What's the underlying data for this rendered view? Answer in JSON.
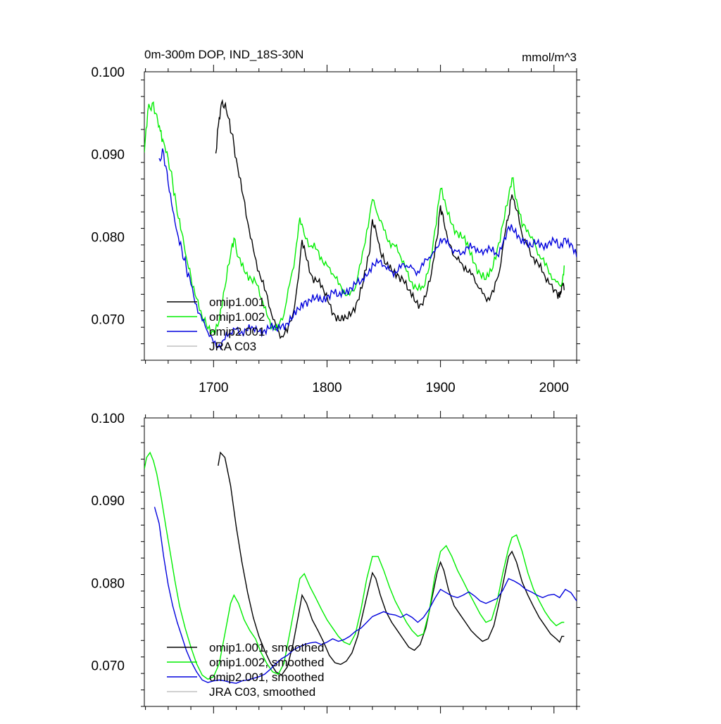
{
  "title": "0m-300m DOP, IND_18S-30N",
  "units": "mmol/m^3",
  "colors": {
    "omip1_001": "#000000",
    "omip1_002": "#00ee00",
    "omip2_001": "#0000dd",
    "jra_c03": "#c0c0c0"
  },
  "chart_data": [
    {
      "type": "line",
      "panel": "raw",
      "xlim": [
        1639,
        2020
      ],
      "ylim": [
        0.065,
        0.1
      ],
      "xticks": [
        1700,
        1800,
        1900,
        2000
      ],
      "xtick_labels": [
        "1700",
        "1800",
        "1900",
        "2000"
      ],
      "yticks": [
        0.07,
        0.08,
        0.09,
        0.1
      ],
      "ytick_labels": [
        "0.070",
        "0.080",
        "0.090",
        "0.100"
      ],
      "legend_position": "bottom-left",
      "series": [
        {
          "name": "omip1.001",
          "key": "omip1_001",
          "x": [
            1702,
            1705,
            1707,
            1710,
            1712,
            1716,
            1720,
            1725,
            1730,
            1735,
            1740,
            1745,
            1750,
            1755,
            1760,
            1765,
            1770,
            1775,
            1778,
            1782,
            1787,
            1792,
            1797,
            1802,
            1807,
            1812,
            1817,
            1822,
            1827,
            1832,
            1837,
            1840,
            1843,
            1847,
            1852,
            1857,
            1862,
            1867,
            1872,
            1877,
            1882,
            1887,
            1892,
            1897,
            1900,
            1903,
            1907,
            1912,
            1917,
            1922,
            1927,
            1932,
            1937,
            1942,
            1947,
            1952,
            1957,
            1960,
            1963,
            1967,
            1972,
            1977,
            1982,
            1987,
            1992,
            1997,
            2002,
            2005,
            2007,
            2009
          ],
          "y": [
            0.0901,
            0.0945,
            0.0962,
            0.096,
            0.0948,
            0.0925,
            0.0895,
            0.0855,
            0.0818,
            0.0785,
            0.0758,
            0.0735,
            0.0712,
            0.0692,
            0.0679,
            0.0684,
            0.0706,
            0.0752,
            0.0796,
            0.0772,
            0.0752,
            0.0745,
            0.0735,
            0.0718,
            0.0705,
            0.0698,
            0.0701,
            0.0708,
            0.0723,
            0.0745,
            0.0778,
            0.0821,
            0.0808,
            0.0782,
            0.0766,
            0.0758,
            0.0755,
            0.0748,
            0.0735,
            0.0722,
            0.0718,
            0.0727,
            0.0755,
            0.0798,
            0.0838,
            0.0818,
            0.0792,
            0.0776,
            0.0769,
            0.0764,
            0.0754,
            0.0742,
            0.0731,
            0.0726,
            0.0733,
            0.0758,
            0.0805,
            0.0825,
            0.0851,
            0.0832,
            0.0802,
            0.0788,
            0.0775,
            0.0763,
            0.0752,
            0.0742,
            0.0735,
            0.0726,
            0.0743,
            0.0735
          ]
        },
        {
          "name": "omip1.002",
          "key": "omip1_002",
          "x": [
            1639,
            1642,
            1646,
            1650,
            1653,
            1656,
            1660,
            1664,
            1668,
            1672,
            1676,
            1680,
            1685,
            1690,
            1695,
            1700,
            1705,
            1710,
            1715,
            1718,
            1722,
            1727,
            1732,
            1737,
            1742,
            1747,
            1752,
            1757,
            1762,
            1767,
            1772,
            1776,
            1780,
            1785,
            1790,
            1795,
            1800,
            1805,
            1810,
            1815,
            1820,
            1825,
            1830,
            1835,
            1840,
            1845,
            1850,
            1855,
            1860,
            1865,
            1870,
            1875,
            1880,
            1885,
            1890,
            1895,
            1900,
            1905,
            1910,
            1915,
            1920,
            1925,
            1930,
            1935,
            1940,
            1945,
            1950,
            1955,
            1960,
            1963,
            1967,
            1972,
            1977,
            1982,
            1987,
            1992,
            1997,
            2002,
            2007,
            2009
          ],
          "y": [
            0.0902,
            0.0952,
            0.0962,
            0.0948,
            0.0928,
            0.0915,
            0.0895,
            0.0865,
            0.0828,
            0.0805,
            0.0775,
            0.0752,
            0.0725,
            0.0702,
            0.0688,
            0.0685,
            0.0698,
            0.0738,
            0.0778,
            0.0798,
            0.0775,
            0.0758,
            0.0752,
            0.0745,
            0.0725,
            0.0705,
            0.0692,
            0.0688,
            0.0705,
            0.0742,
            0.0778,
            0.0823,
            0.0802,
            0.0788,
            0.0785,
            0.0775,
            0.0765,
            0.0755,
            0.0742,
            0.0735,
            0.0729,
            0.0738,
            0.0768,
            0.0808,
            0.0845,
            0.0825,
            0.0808,
            0.0795,
            0.0788,
            0.0775,
            0.0758,
            0.0745,
            0.0735,
            0.0738,
            0.0762,
            0.0808,
            0.0858,
            0.0835,
            0.0815,
            0.0805,
            0.0798,
            0.0785,
            0.0768,
            0.0755,
            0.0748,
            0.0758,
            0.0785,
            0.0815,
            0.0848,
            0.0871,
            0.0845,
            0.0812,
            0.0808,
            0.0795,
            0.0778,
            0.0765,
            0.0755,
            0.0745,
            0.0742,
            0.0765
          ]
        },
        {
          "name": "omip2.001",
          "key": "omip2_001",
          "x": [
            1652,
            1656,
            1660,
            1664,
            1668,
            1672,
            1676,
            1680,
            1685,
            1690,
            1695,
            1700,
            1705,
            1710,
            1715,
            1720,
            1725,
            1730,
            1735,
            1740,
            1745,
            1750,
            1755,
            1760,
            1765,
            1770,
            1775,
            1780,
            1785,
            1790,
            1795,
            1800,
            1805,
            1810,
            1815,
            1820,
            1825,
            1830,
            1835,
            1840,
            1845,
            1850,
            1855,
            1860,
            1865,
            1870,
            1875,
            1880,
            1885,
            1890,
            1895,
            1900,
            1905,
            1910,
            1915,
            1920,
            1925,
            1930,
            1935,
            1940,
            1945,
            1950,
            1955,
            1960,
            1965,
            1970,
            1975,
            1980,
            1985,
            1990,
            1995,
            2000,
            2005,
            2010,
            2015,
            2020
          ],
          "y": [
            0.0895,
            0.0902,
            0.0865,
            0.0832,
            0.0805,
            0.0785,
            0.0762,
            0.0742,
            0.0718,
            0.0698,
            0.0684,
            0.0671,
            0.0669,
            0.0675,
            0.0683,
            0.0688,
            0.0685,
            0.0686,
            0.0689,
            0.0685,
            0.0687,
            0.0689,
            0.0688,
            0.0692,
            0.0695,
            0.0702,
            0.0712,
            0.0721,
            0.0723,
            0.0725,
            0.0722,
            0.0728,
            0.0733,
            0.0728,
            0.0731,
            0.0738,
            0.0742,
            0.0745,
            0.0752,
            0.0768,
            0.0768,
            0.0765,
            0.0759,
            0.0758,
            0.0762,
            0.0765,
            0.0762,
            0.0758,
            0.0765,
            0.0775,
            0.0782,
            0.0798,
            0.0792,
            0.0785,
            0.0782,
            0.0782,
            0.0785,
            0.0788,
            0.0781,
            0.0785,
            0.0782,
            0.0778,
            0.0792,
            0.0812,
            0.0805,
            0.0798,
            0.0795,
            0.0788,
            0.0792,
            0.0789,
            0.0792,
            0.0795,
            0.0786,
            0.0798,
            0.0792,
            0.0775
          ]
        },
        {
          "name": "JRA C03",
          "key": "jra_c03",
          "x": [],
          "y": []
        }
      ]
    },
    {
      "type": "line",
      "panel": "smoothed",
      "xlim": [
        1639,
        2020
      ],
      "ylim": [
        0.065,
        0.1
      ],
      "xticks": [
        1700,
        1800,
        1900,
        2000
      ],
      "xtick_labels": [],
      "yticks": [
        0.07,
        0.08,
        0.09,
        0.1
      ],
      "ytick_labels": [
        "0.070",
        "0.080",
        "0.090",
        "0.100"
      ],
      "legend_position": "bottom-left",
      "series": [
        {
          "name": "omip1.001, smoothed",
          "key": "omip1_001",
          "x": [
            1704,
            1706,
            1710,
            1715,
            1720,
            1725,
            1730,
            1735,
            1740,
            1745,
            1750,
            1755,
            1760,
            1765,
            1770,
            1775,
            1778,
            1782,
            1787,
            1792,
            1797,
            1802,
            1807,
            1812,
            1817,
            1822,
            1827,
            1832,
            1837,
            1840,
            1843,
            1847,
            1852,
            1857,
            1862,
            1867,
            1872,
            1877,
            1882,
            1887,
            1892,
            1897,
            1900,
            1903,
            1907,
            1912,
            1917,
            1922,
            1927,
            1932,
            1937,
            1942,
            1947,
            1952,
            1957,
            1960,
            1963,
            1967,
            1972,
            1977,
            1982,
            1987,
            1992,
            1997,
            2002,
            2005,
            2007,
            2009
          ],
          "y": [
            0.0942,
            0.0958,
            0.0952,
            0.0918,
            0.0868,
            0.0825,
            0.0788,
            0.0758,
            0.0735,
            0.0718,
            0.0703,
            0.0692,
            0.0688,
            0.0698,
            0.0725,
            0.0762,
            0.0785,
            0.0775,
            0.0755,
            0.0742,
            0.0728,
            0.0712,
            0.0703,
            0.0701,
            0.0705,
            0.0715,
            0.0735,
            0.0765,
            0.0795,
            0.0812,
            0.0805,
            0.0785,
            0.0765,
            0.0752,
            0.0742,
            0.0732,
            0.0722,
            0.0718,
            0.0725,
            0.0745,
            0.0778,
            0.0812,
            0.0825,
            0.0815,
            0.0792,
            0.0772,
            0.0762,
            0.0752,
            0.0742,
            0.0735,
            0.0729,
            0.0732,
            0.0748,
            0.0778,
            0.0812,
            0.0832,
            0.0838,
            0.0825,
            0.0801,
            0.0785,
            0.0771,
            0.0758,
            0.0748,
            0.0738,
            0.0732,
            0.0728,
            0.0735,
            0.0735
          ]
        },
        {
          "name": "omip1.002, smoothed",
          "key": "omip1_002",
          "x": [
            1639,
            1641,
            1644,
            1647,
            1650,
            1654,
            1658,
            1662,
            1666,
            1670,
            1675,
            1680,
            1685,
            1690,
            1695,
            1700,
            1705,
            1710,
            1715,
            1718,
            1722,
            1727,
            1732,
            1737,
            1742,
            1747,
            1752,
            1757,
            1762,
            1767,
            1772,
            1776,
            1780,
            1785,
            1790,
            1795,
            1800,
            1805,
            1810,
            1815,
            1820,
            1825,
            1830,
            1835,
            1840,
            1845,
            1850,
            1855,
            1860,
            1865,
            1870,
            1875,
            1880,
            1885,
            1890,
            1895,
            1900,
            1905,
            1910,
            1915,
            1920,
            1925,
            1930,
            1935,
            1940,
            1945,
            1950,
            1955,
            1960,
            1963,
            1967,
            1972,
            1977,
            1982,
            1987,
            1992,
            1997,
            2002,
            2007,
            2009
          ],
          "y": [
            0.0938,
            0.0952,
            0.0958,
            0.0948,
            0.0932,
            0.0902,
            0.0868,
            0.0835,
            0.0802,
            0.0772,
            0.0745,
            0.0722,
            0.0702,
            0.0688,
            0.0683,
            0.0686,
            0.0702,
            0.0738,
            0.0775,
            0.0785,
            0.0775,
            0.0755,
            0.0742,
            0.0732,
            0.0715,
            0.0702,
            0.0692,
            0.0689,
            0.0702,
            0.0738,
            0.0775,
            0.0805,
            0.0811,
            0.0795,
            0.0782,
            0.0768,
            0.0755,
            0.0745,
            0.0735,
            0.0728,
            0.0725,
            0.0738,
            0.0768,
            0.0805,
            0.0832,
            0.0832,
            0.0815,
            0.0795,
            0.0778,
            0.0765,
            0.0752,
            0.0742,
            0.0735,
            0.0738,
            0.0765,
            0.0808,
            0.0838,
            0.0845,
            0.0832,
            0.0815,
            0.0802,
            0.0788,
            0.0775,
            0.0762,
            0.0752,
            0.0755,
            0.0778,
            0.0812,
            0.0842,
            0.0855,
            0.0858,
            0.0838,
            0.0812,
            0.0792,
            0.0778,
            0.0765,
            0.0755,
            0.0748,
            0.0752,
            0.0752
          ]
        },
        {
          "name": "omip2.001, smoothed",
          "key": "omip2_001",
          "x": [
            1648,
            1652,
            1656,
            1660,
            1664,
            1668,
            1672,
            1676,
            1680,
            1685,
            1690,
            1695,
            1700,
            1705,
            1710,
            1715,
            1720,
            1725,
            1730,
            1735,
            1740,
            1745,
            1750,
            1755,
            1760,
            1765,
            1770,
            1775,
            1780,
            1785,
            1790,
            1795,
            1800,
            1805,
            1810,
            1815,
            1820,
            1825,
            1830,
            1835,
            1840,
            1845,
            1850,
            1855,
            1860,
            1865,
            1870,
            1875,
            1880,
            1885,
            1890,
            1895,
            1900,
            1905,
            1910,
            1915,
            1920,
            1925,
            1930,
            1935,
            1940,
            1945,
            1950,
            1955,
            1960,
            1965,
            1970,
            1975,
            1980,
            1985,
            1990,
            1995,
            2000,
            2005,
            2010,
            2015,
            2020
          ],
          "y": [
            0.0892,
            0.0872,
            0.0832,
            0.0798,
            0.0772,
            0.0752,
            0.0735,
            0.0718,
            0.0705,
            0.0692,
            0.0682,
            0.0679,
            0.0681,
            0.0682,
            0.0681,
            0.0679,
            0.0678,
            0.0681,
            0.0682,
            0.0684,
            0.0686,
            0.0689,
            0.0695,
            0.0702,
            0.0708,
            0.0712,
            0.0718,
            0.0722,
            0.0725,
            0.0727,
            0.0728,
            0.0725,
            0.0728,
            0.0732,
            0.0729,
            0.0731,
            0.0735,
            0.0741,
            0.0745,
            0.0752,
            0.0759,
            0.0762,
            0.0765,
            0.0762,
            0.0761,
            0.0758,
            0.0762,
            0.0758,
            0.0752,
            0.0758,
            0.0768,
            0.0781,
            0.0792,
            0.0788,
            0.0784,
            0.0782,
            0.0785,
            0.0789,
            0.0784,
            0.0778,
            0.0775,
            0.0778,
            0.0781,
            0.0791,
            0.0805,
            0.0802,
            0.0798,
            0.0792,
            0.0789,
            0.0785,
            0.0782,
            0.0785,
            0.0786,
            0.0782,
            0.0792,
            0.0788,
            0.0778
          ]
        },
        {
          "name": "JRA C03, smoothed",
          "key": "jra_c03",
          "x": [],
          "y": []
        }
      ]
    }
  ]
}
